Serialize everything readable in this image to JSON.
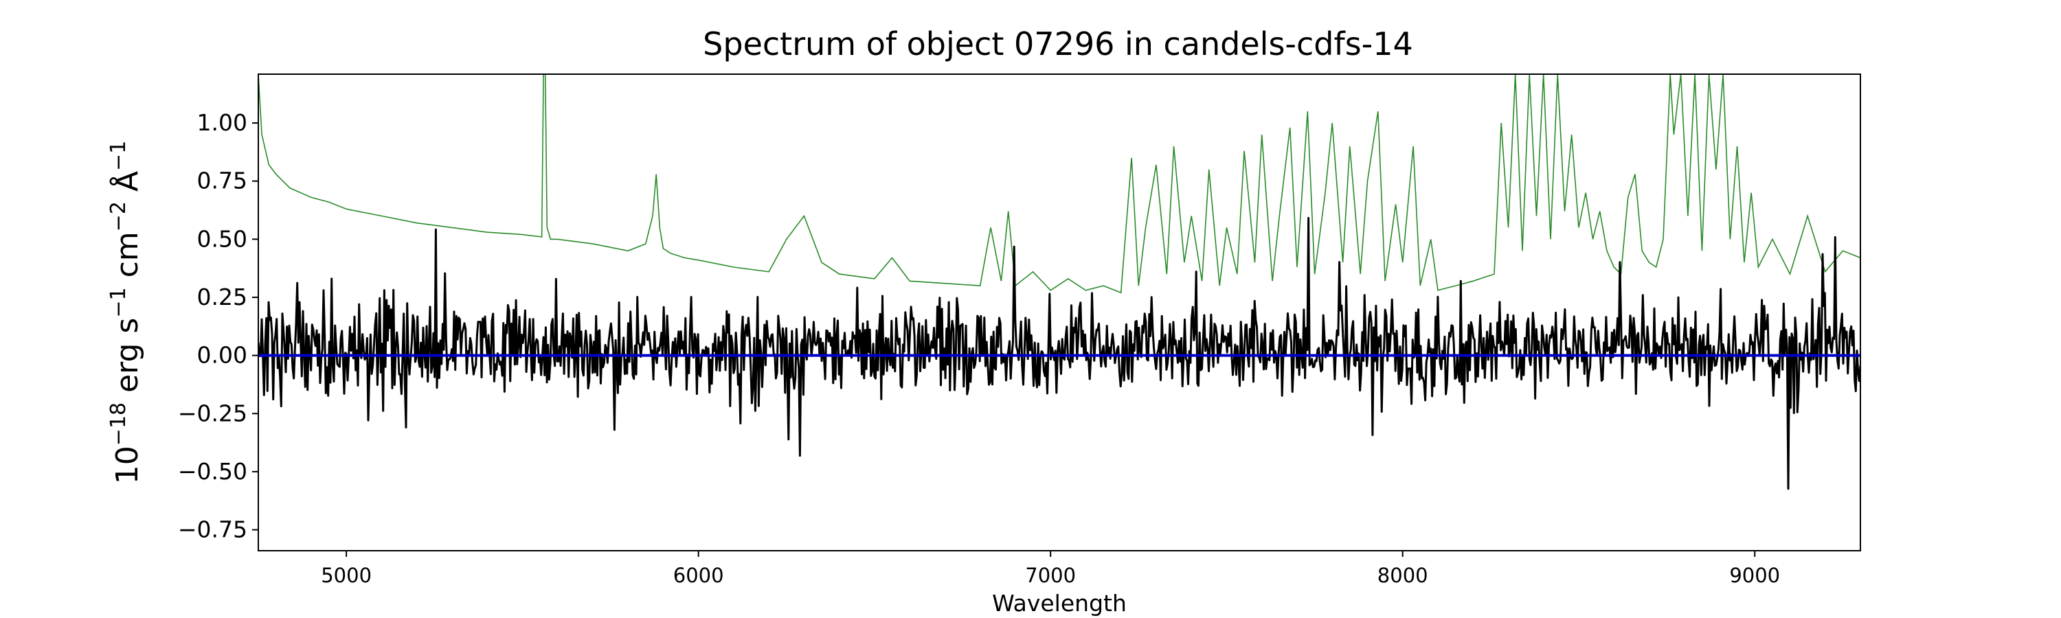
{
  "chart_data": {
    "type": "line",
    "title": "Spectrum of object 07296 in candels-cdfs-14",
    "xlabel": "Wavelength",
    "ylabel": {
      "base": "10",
      "exp1": "−18",
      "erg": " erg s",
      "exp2": "−1",
      "cm": " cm",
      "exp3": "−2",
      "ang": " Å",
      "exp4": "−1"
    },
    "xlim": [
      4750,
      9300
    ],
    "ylim": [
      -0.84,
      1.21
    ],
    "x_ticks": [
      5000,
      6000,
      7000,
      8000,
      9000
    ],
    "x_tick_labels": [
      "5000",
      "6000",
      "7000",
      "8000",
      "9000"
    ],
    "y_ticks": [
      1.0,
      0.75,
      0.5,
      0.25,
      0.0,
      -0.25,
      -0.5,
      -0.75
    ],
    "y_tick_labels": [
      "1.00",
      "0.75",
      "0.50",
      "0.25",
      "0.00",
      "−0.25",
      "−0.50",
      "−0.75"
    ],
    "grid": false,
    "series": [
      {
        "role": "noise",
        "color": "#2a8a2a",
        "x": [
          4750,
          4760,
          4780,
          4800,
          4840,
          4870,
          4900,
          4950,
          5000,
          5100,
          5200,
          5300,
          5400,
          5500,
          5555,
          5560,
          5565,
          5570,
          5580,
          5600,
          5700,
          5800,
          5850,
          5870,
          5880,
          5890,
          5900,
          5920,
          5960,
          6000,
          6100,
          6200,
          6250,
          6300,
          6350,
          6400,
          6500,
          6550,
          6600,
          6700,
          6800,
          6830,
          6860,
          6880,
          6900,
          6950,
          7000,
          7050,
          7100,
          7150,
          7200,
          7230,
          7250,
          7270,
          7300,
          7330,
          7350,
          7380,
          7400,
          7430,
          7450,
          7480,
          7500,
          7530,
          7550,
          7580,
          7600,
          7630,
          7650,
          7680,
          7700,
          7730,
          7750,
          7780,
          7800,
          7830,
          7850,
          7880,
          7900,
          7930,
          7950,
          7980,
          8000,
          8030,
          8050,
          8080,
          8100,
          8150,
          8200,
          8260,
          8280,
          8300,
          8320,
          8340,
          8360,
          8380,
          8400,
          8420,
          8440,
          8460,
          8480,
          8500,
          8520,
          8540,
          8560,
          8580,
          8600,
          8620,
          8640,
          8660,
          8680,
          8700,
          8720,
          8740,
          8760,
          8770,
          8790,
          8810,
          8830,
          8850,
          8870,
          8890,
          8910,
          8930,
          8950,
          8970,
          8990,
          9010,
          9050,
          9100,
          9150,
          9200,
          9250,
          9300
        ],
        "y": [
          1.21,
          0.95,
          0.82,
          0.78,
          0.72,
          0.7,
          0.68,
          0.66,
          0.63,
          0.6,
          0.57,
          0.55,
          0.53,
          0.52,
          0.51,
          1.21,
          1.21,
          0.55,
          0.5,
          0.5,
          0.48,
          0.45,
          0.48,
          0.6,
          0.78,
          0.55,
          0.46,
          0.44,
          0.42,
          0.41,
          0.38,
          0.36,
          0.5,
          0.6,
          0.4,
          0.35,
          0.33,
          0.42,
          0.32,
          0.31,
          0.3,
          0.55,
          0.32,
          0.62,
          0.3,
          0.36,
          0.28,
          0.33,
          0.28,
          0.3,
          0.27,
          0.85,
          0.3,
          0.55,
          0.82,
          0.35,
          0.9,
          0.4,
          0.6,
          0.32,
          0.8,
          0.3,
          0.55,
          0.35,
          0.88,
          0.4,
          0.95,
          0.32,
          0.6,
          0.98,
          0.38,
          1.05,
          0.35,
          0.7,
          1.0,
          0.4,
          0.9,
          0.35,
          0.75,
          1.05,
          0.32,
          0.65,
          0.4,
          0.9,
          0.3,
          0.5,
          0.28,
          0.3,
          0.32,
          0.35,
          1.0,
          0.55,
          1.21,
          0.45,
          1.21,
          0.6,
          1.21,
          0.5,
          1.21,
          0.62,
          0.95,
          0.55,
          0.7,
          0.5,
          0.62,
          0.45,
          0.38,
          0.35,
          0.68,
          0.78,
          0.45,
          0.4,
          0.38,
          0.5,
          1.21,
          0.95,
          1.21,
          0.6,
          1.21,
          0.45,
          1.21,
          0.8,
          1.21,
          0.5,
          0.9,
          0.4,
          0.7,
          0.38,
          0.5,
          0.35,
          0.6,
          0.36,
          0.45,
          0.42
        ]
      },
      {
        "role": "flux",
        "color": "#000000",
        "seed": 7296,
        "points": 1400,
        "x_range": [
          4750,
          9300
        ],
        "spread": 0.22
      },
      {
        "role": "zero-line",
        "color": "#0000cc",
        "x": [
          4750,
          9300
        ],
        "y": [
          0.0,
          0.0
        ]
      }
    ]
  }
}
